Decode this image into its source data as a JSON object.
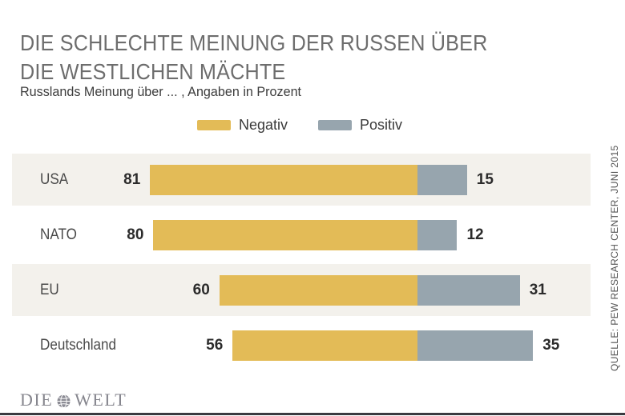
{
  "header": {
    "title_lines": [
      "DIE SCHLECHTE MEINUNG DER RUSSEN ÜBER",
      "DIE WESTLICHEN MÄCHTE"
    ],
    "subtitle": "Russlands Meinung über ... , Angaben in Prozent"
  },
  "legend": [
    {
      "label": "Negativ",
      "color": "#e3bb57"
    },
    {
      "label": "Positiv",
      "color": "#97a5ae"
    }
  ],
  "chart_data": {
    "type": "bar",
    "orientation": "horizontal-diverging",
    "title": "DIE SCHLECHTE MEINUNG DER RUSSEN ÜBER DIE WESTLICHEN MÄCHTE",
    "subtitle": "Russlands Meinung über ... , Angaben in Prozent",
    "unit": "Prozent",
    "categories": [
      "USA",
      "NATO",
      "EU",
      "Deutschland"
    ],
    "series": [
      {
        "name": "Negativ",
        "color": "#e3bb57",
        "values": [
          81,
          80,
          60,
          56
        ]
      },
      {
        "name": "Positiv",
        "color": "#97a5ae",
        "values": [
          15,
          12,
          31,
          35
        ]
      }
    ],
    "value_labels": true,
    "xlim": [
      0,
      100
    ],
    "grid": false,
    "legend_position": "top-center",
    "row_stripe_color": "#f3f1ec",
    "striped_rows": [
      0,
      2
    ]
  },
  "source": "QUELLE: PEW RESEARCH CENTER, JUNI 2015",
  "footer": {
    "logo_left": "DIE",
    "logo_right": "WELT"
  }
}
